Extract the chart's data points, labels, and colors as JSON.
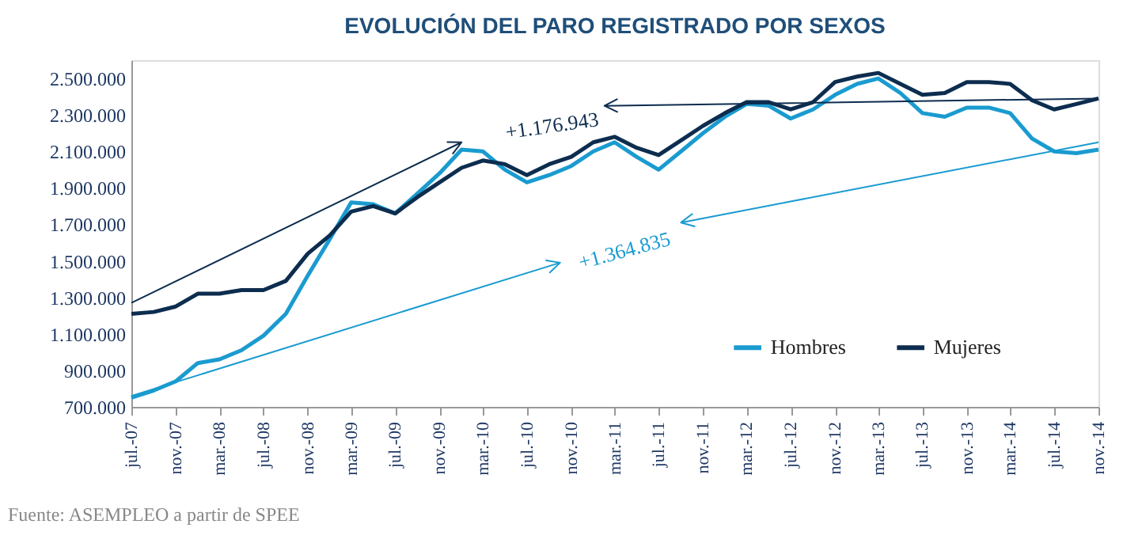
{
  "chart_data": {
    "type": "line",
    "title": "EVOLUCIÓN DEL PARO REGISTRADO POR SEXOS",
    "x": [
      "2007-07",
      "2007-09",
      "2007-11",
      "2008-01",
      "2008-03",
      "2008-05",
      "2008-07",
      "2008-09",
      "2008-11",
      "2009-01",
      "2009-03",
      "2009-05",
      "2009-07",
      "2009-09",
      "2009-11",
      "2010-01",
      "2010-03",
      "2010-05",
      "2010-07",
      "2010-09",
      "2010-11",
      "2011-01",
      "2011-03",
      "2011-05",
      "2011-07",
      "2011-09",
      "2011-11",
      "2012-01",
      "2012-03",
      "2012-05",
      "2012-07",
      "2012-09",
      "2012-11",
      "2013-01",
      "2013-03",
      "2013-05",
      "2013-07",
      "2013-09",
      "2013-11",
      "2014-01",
      "2014-03",
      "2014-05",
      "2014-07",
      "2014-09",
      "2014-11"
    ],
    "series": [
      {
        "name": "Hombres",
        "color": "#1a9bd0",
        "values": [
          750000,
          790000,
          840000,
          940000,
          960000,
          1010000,
          1090000,
          1210000,
          1420000,
          1620000,
          1820000,
          1810000,
          1760000,
          1870000,
          1980000,
          2110000,
          2100000,
          2000000,
          1930000,
          1970000,
          2020000,
          2100000,
          2150000,
          2070000,
          2000000,
          2100000,
          2200000,
          2290000,
          2360000,
          2350000,
          2280000,
          2330000,
          2410000,
          2470000,
          2500000,
          2420000,
          2310000,
          2290000,
          2340000,
          2340000,
          2310000,
          2170000,
          2100000,
          2090000,
          2110000
        ]
      },
      {
        "name": "Mujeres",
        "color": "#0d2d4f",
        "values": [
          1210000,
          1220000,
          1250000,
          1320000,
          1320000,
          1340000,
          1340000,
          1390000,
          1540000,
          1640000,
          1770000,
          1800000,
          1760000,
          1850000,
          1930000,
          2010000,
          2050000,
          2030000,
          1970000,
          2030000,
          2070000,
          2150000,
          2180000,
          2120000,
          2080000,
          2160000,
          2240000,
          2310000,
          2370000,
          2370000,
          2330000,
          2370000,
          2480000,
          2510000,
          2530000,
          2470000,
          2410000,
          2420000,
          2480000,
          2480000,
          2470000,
          2380000,
          2330000,
          2360000,
          2390000
        ]
      },
      {
        "type": "line",
        "color": "#0d2d4f",
        "x": [
          "2007-07",
          "2010-01"
        ],
        "values": [
          1270000,
          2150000
        ]
      },
      {
        "type": "line",
        "color": "#0d2d4f",
        "x": [
          "2014-11",
          "2011-02"
        ],
        "values": [
          2390000,
          2350000
        ]
      },
      {
        "type": "line",
        "color": "#1a9bd0",
        "x": [
          "2007-07",
          "2010-10"
        ],
        "values": [
          760000,
          1490000
        ]
      },
      {
        "type": "line",
        "color": "#1a9bd0",
        "x": [
          "2014-11",
          "2011-09"
        ],
        "values": [
          2150000,
          1710000
        ]
      }
    ],
    "xlim": [
      "2007-07",
      "2014-11"
    ],
    "xticks": [
      {
        "value": "2007-07",
        "label": "jul.-07"
      },
      {
        "value": "2007-11",
        "label": "nov.-07"
      },
      {
        "value": "2008-03",
        "label": "mar.-08"
      },
      {
        "value": "2008-07",
        "label": "jul.-08"
      },
      {
        "value": "2008-11",
        "label": "nov.-08"
      },
      {
        "value": "2009-03",
        "label": "mar.-09"
      },
      {
        "value": "2009-07",
        "label": "jul.-09"
      },
      {
        "value": "2009-11",
        "label": "nov.-09"
      },
      {
        "value": "2010-03",
        "label": "mar.-10"
      },
      {
        "value": "2010-07",
        "label": "jul.-10"
      },
      {
        "value": "2010-11",
        "label": "nov.-10"
      },
      {
        "value": "2011-03",
        "label": "mar.-11"
      },
      {
        "value": "2011-07",
        "label": "jul.-11"
      },
      {
        "value": "2011-11",
        "label": "nov.-11"
      },
      {
        "value": "2012-03",
        "label": "mar.-12"
      },
      {
        "value": "2012-07",
        "label": "jul.-12"
      },
      {
        "value": "2012-11",
        "label": "nov.-12"
      },
      {
        "value": "2013-03",
        "label": "mar.-13"
      },
      {
        "value": "2013-07",
        "label": "jul.-13"
      },
      {
        "value": "2013-11",
        "label": "nov.-13"
      },
      {
        "value": "2014-03",
        "label": "mar.-14"
      },
      {
        "value": "2014-07",
        "label": "jul.-14"
      },
      {
        "value": "2014-11",
        "label": "nov.-14"
      }
    ],
    "ylim": [
      700000,
      2600000
    ],
    "yticks": [
      {
        "value": 700000,
        "label": "700.000"
      },
      {
        "value": 900000,
        "label": "900.000"
      },
      {
        "value": 1100000,
        "label": "1.100.000"
      },
      {
        "value": 1300000,
        "label": "1.300.000"
      },
      {
        "value": 1500000,
        "label": "1.500.000"
      },
      {
        "value": 1700000,
        "label": "1.700.000"
      },
      {
        "value": 1900000,
        "label": "1.900.000"
      },
      {
        "value": 2100000,
        "label": "2.100.000"
      },
      {
        "value": 2300000,
        "label": "2.300.000"
      },
      {
        "value": 2500000,
        "label": "2.500.000"
      }
    ],
    "annotations": [
      "+1.176.943",
      "+1.364.835",
      "Fuente: ASEMPLEO a partir de SPEE"
    ],
    "legend": "bottom right",
    "grid": false,
    "marker": "none"
  }
}
